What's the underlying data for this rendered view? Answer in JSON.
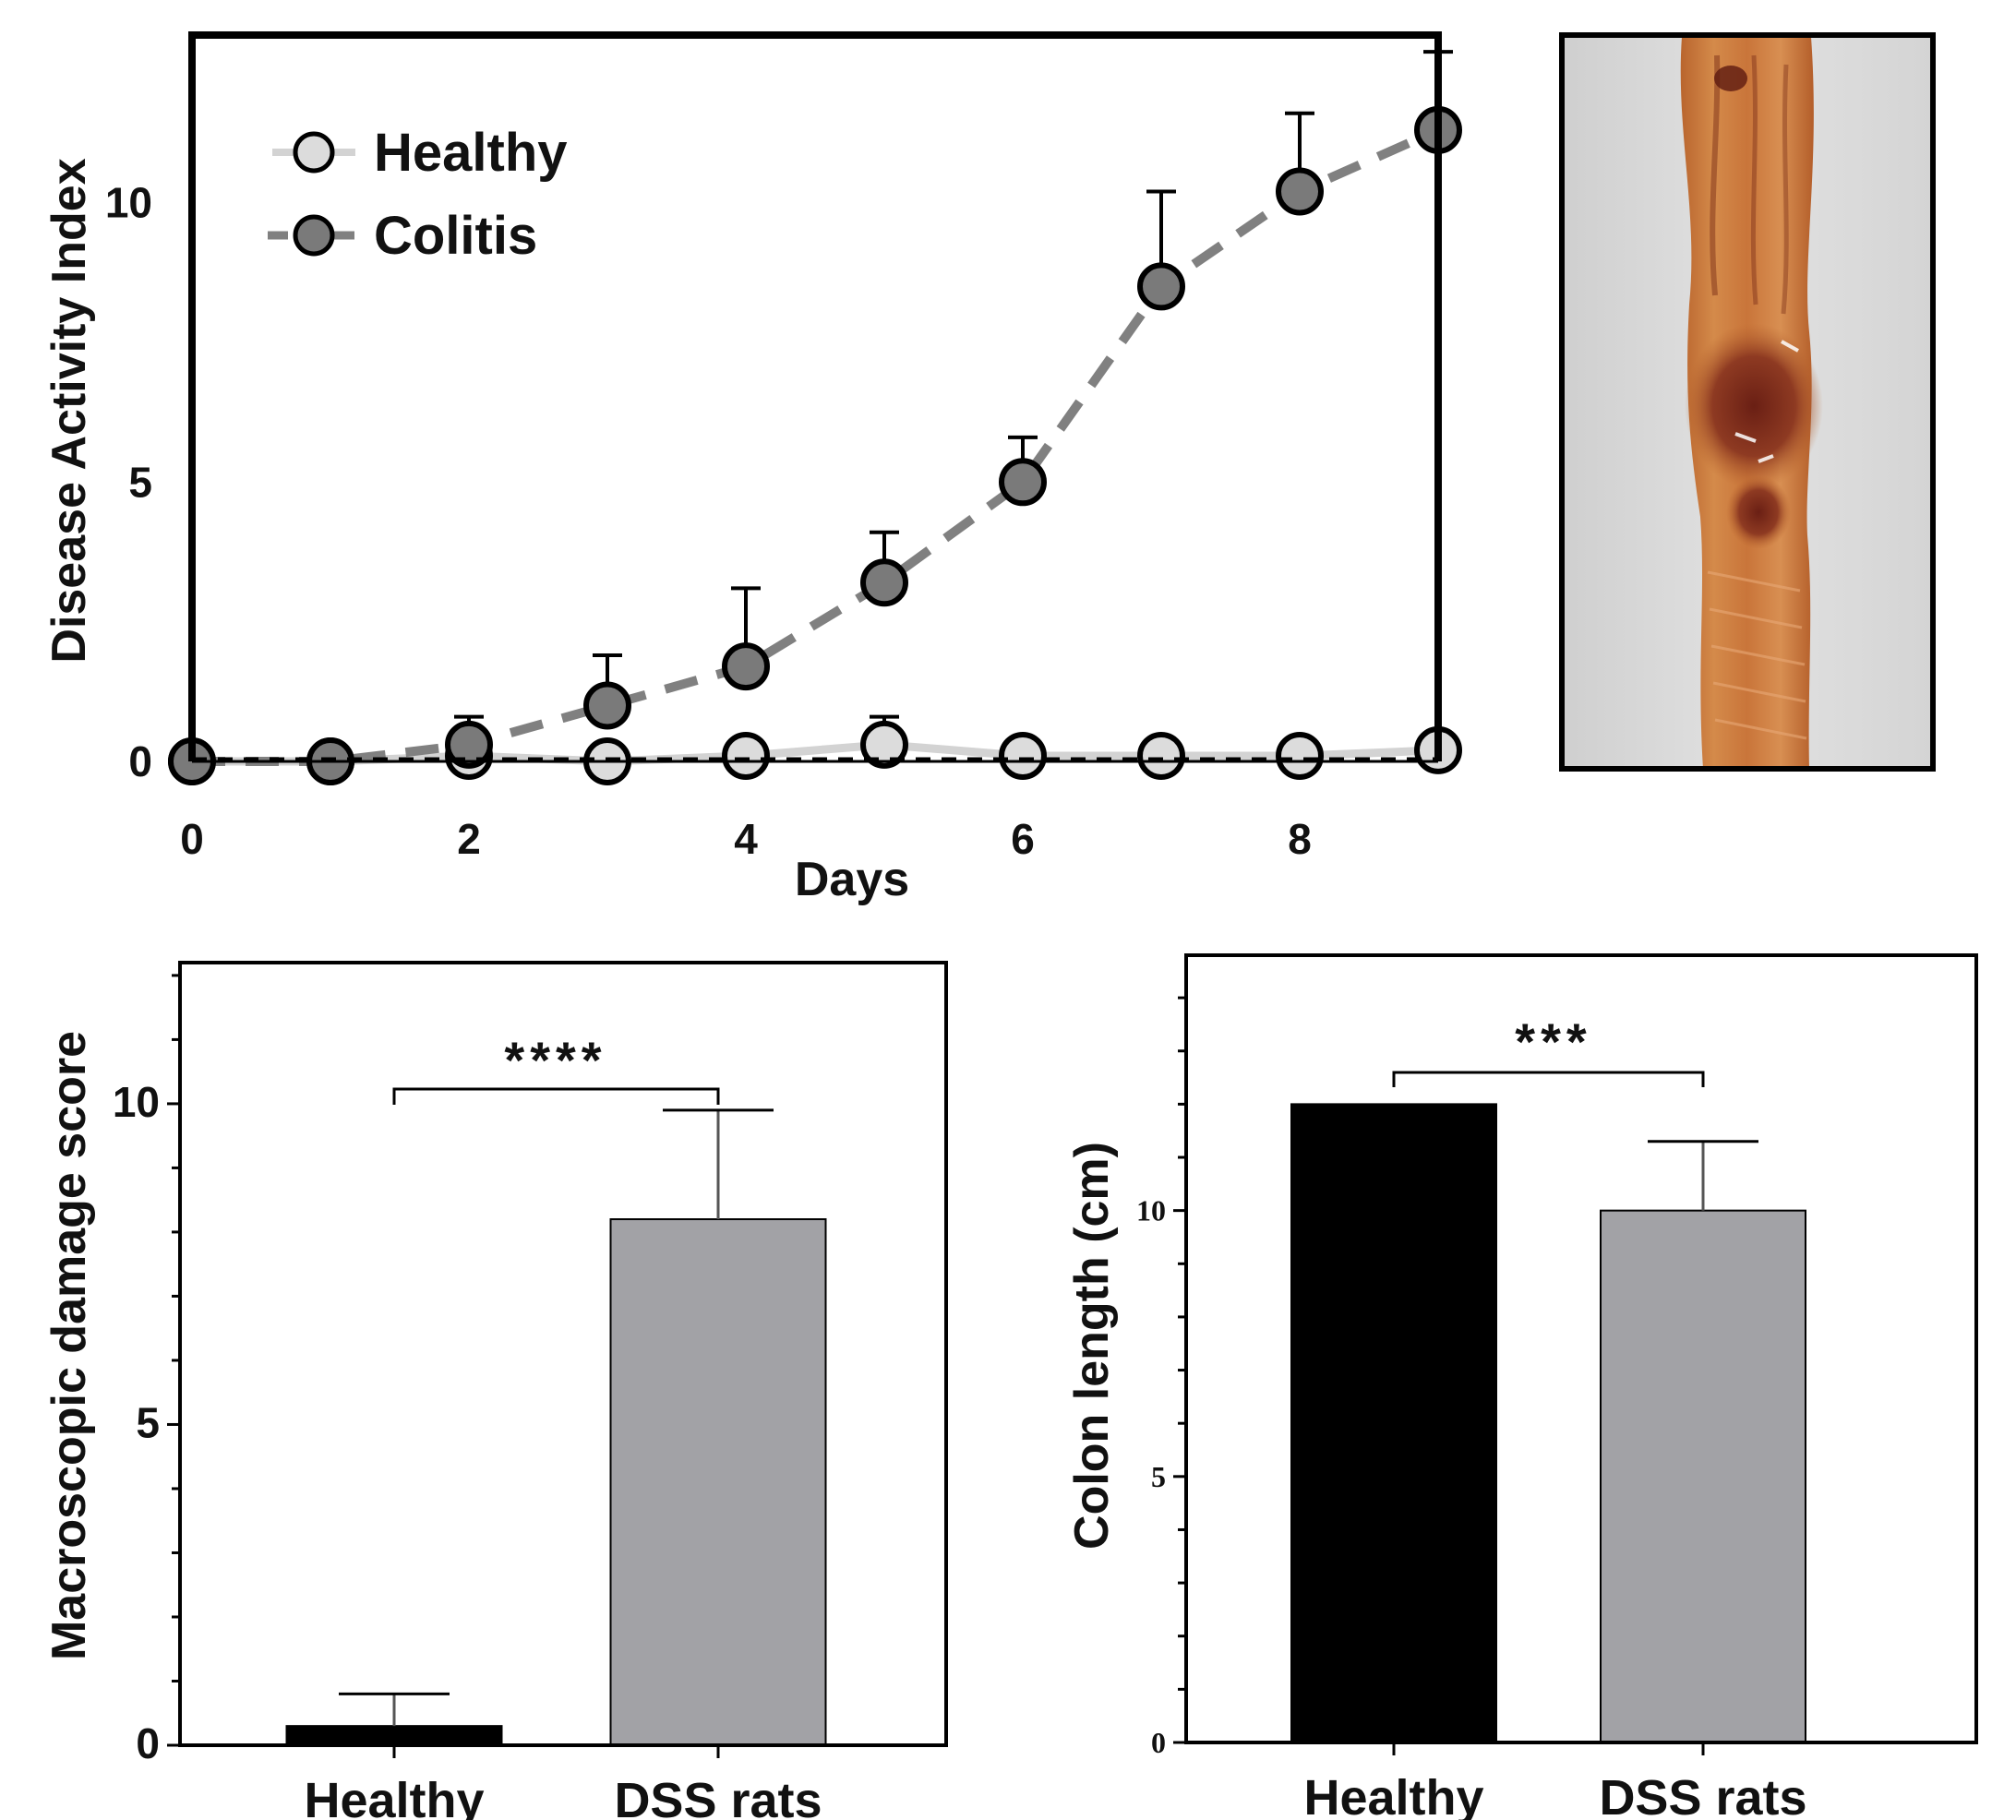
{
  "chart_data": [
    {
      "type": "line",
      "xlabel": "Days",
      "ylabel": "Disease Activity Index",
      "xlim": [
        0,
        9
      ],
      "ylim": [
        0,
        13
      ],
      "xticks": [
        "0",
        "2",
        "4",
        "6",
        "8"
      ],
      "yticks": [
        "0",
        "5",
        "10"
      ],
      "legend_position": "top-left",
      "series": [
        {
          "name": "Healthy",
          "color": "#d3d3d3",
          "x": [
            0,
            1,
            2,
            3,
            4,
            5,
            6,
            7,
            8,
            9
          ],
          "y": [
            0,
            0,
            0.1,
            0,
            0.1,
            0.3,
            0.1,
            0.1,
            0.1,
            0.2
          ],
          "error": [
            0,
            0,
            0,
            0,
            0,
            0.5,
            0,
            0,
            0,
            0
          ]
        },
        {
          "name": "Colitis",
          "color": "#808080",
          "x": [
            0,
            1,
            2,
            3,
            4,
            5,
            6,
            7,
            8,
            9
          ],
          "y": [
            0,
            0,
            0.3,
            1.0,
            1.7,
            3.2,
            5.0,
            8.5,
            10.2,
            11.3
          ],
          "error": [
            0,
            0,
            0.5,
            0.9,
            1.4,
            0.9,
            0.8,
            1.7,
            1.4,
            1.4
          ]
        }
      ]
    },
    {
      "type": "bar",
      "categories": [
        "Healthy",
        "DSS rats"
      ],
      "values": [
        0.3,
        8.2
      ],
      "errors": [
        0.5,
        1.7
      ],
      "colors": [
        "#000000",
        "#a2a2a6"
      ],
      "ylabel": "Macroscopic damage score",
      "ylim": [
        0,
        12.2
      ],
      "yticks": [
        "0",
        "5",
        "10"
      ],
      "significance": "****"
    },
    {
      "type": "bar",
      "categories": [
        "Healthy",
        "DSS rats"
      ],
      "values": [
        12.0,
        10.0
      ],
      "errors": [
        0,
        1.3
      ],
      "colors": [
        "#000000",
        "#a2a2a6"
      ],
      "ylabel": "Colon length (cm)",
      "ylim": [
        0,
        14.8
      ],
      "yticks": [
        "0",
        "5",
        "10"
      ],
      "significance": "***"
    }
  ]
}
